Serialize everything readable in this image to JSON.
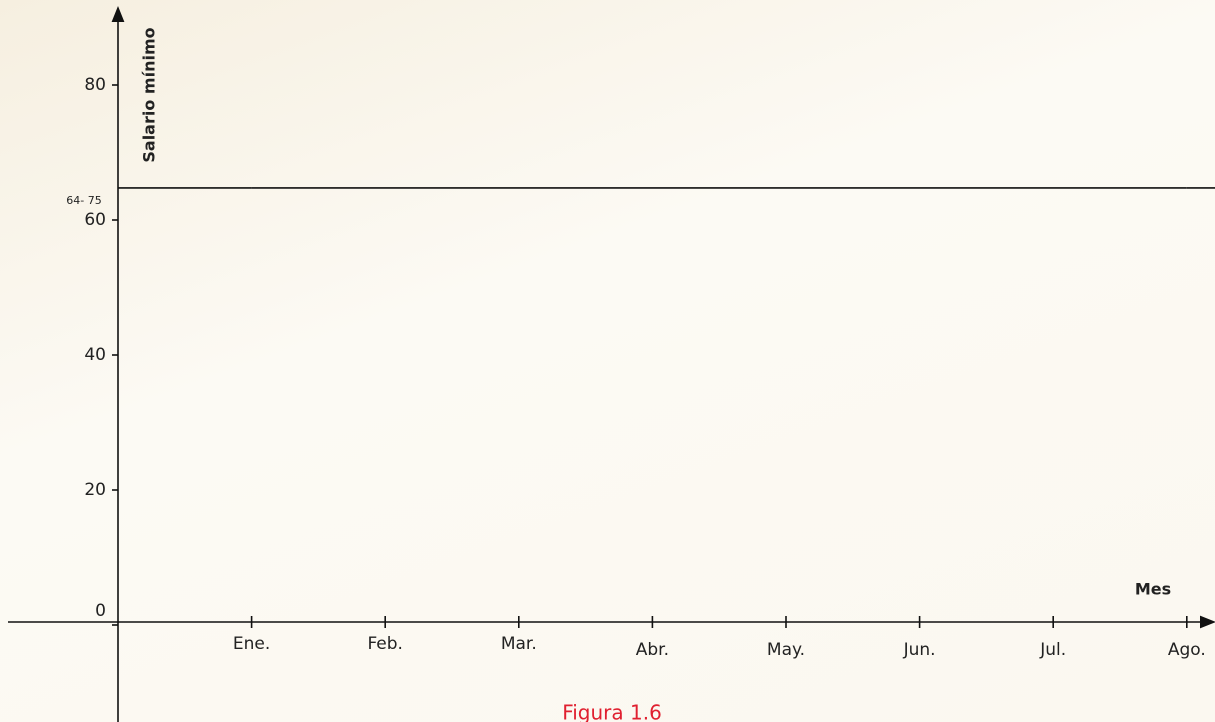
{
  "chart_data": {
    "type": "line",
    "x_label": "Mes",
    "y_label": "Salario mínimo",
    "annotation": "64- 75",
    "caption": "Figura 1.6",
    "categories": [
      "Ene.",
      "Feb.",
      "Mar.",
      "Abr.",
      "May.",
      "Jun.",
      "Jul.",
      "Ago."
    ],
    "series": [
      {
        "name": null,
        "color": "#111111",
        "values": [
          64.75,
          64.75,
          64.75,
          64.75,
          64.75,
          64.75,
          64.75,
          64.75
        ]
      }
    ],
    "ylim": [
      0,
      80
    ],
    "yticks": [
      0,
      20,
      40,
      60,
      80
    ],
    "grid": false,
    "legend": false
  }
}
